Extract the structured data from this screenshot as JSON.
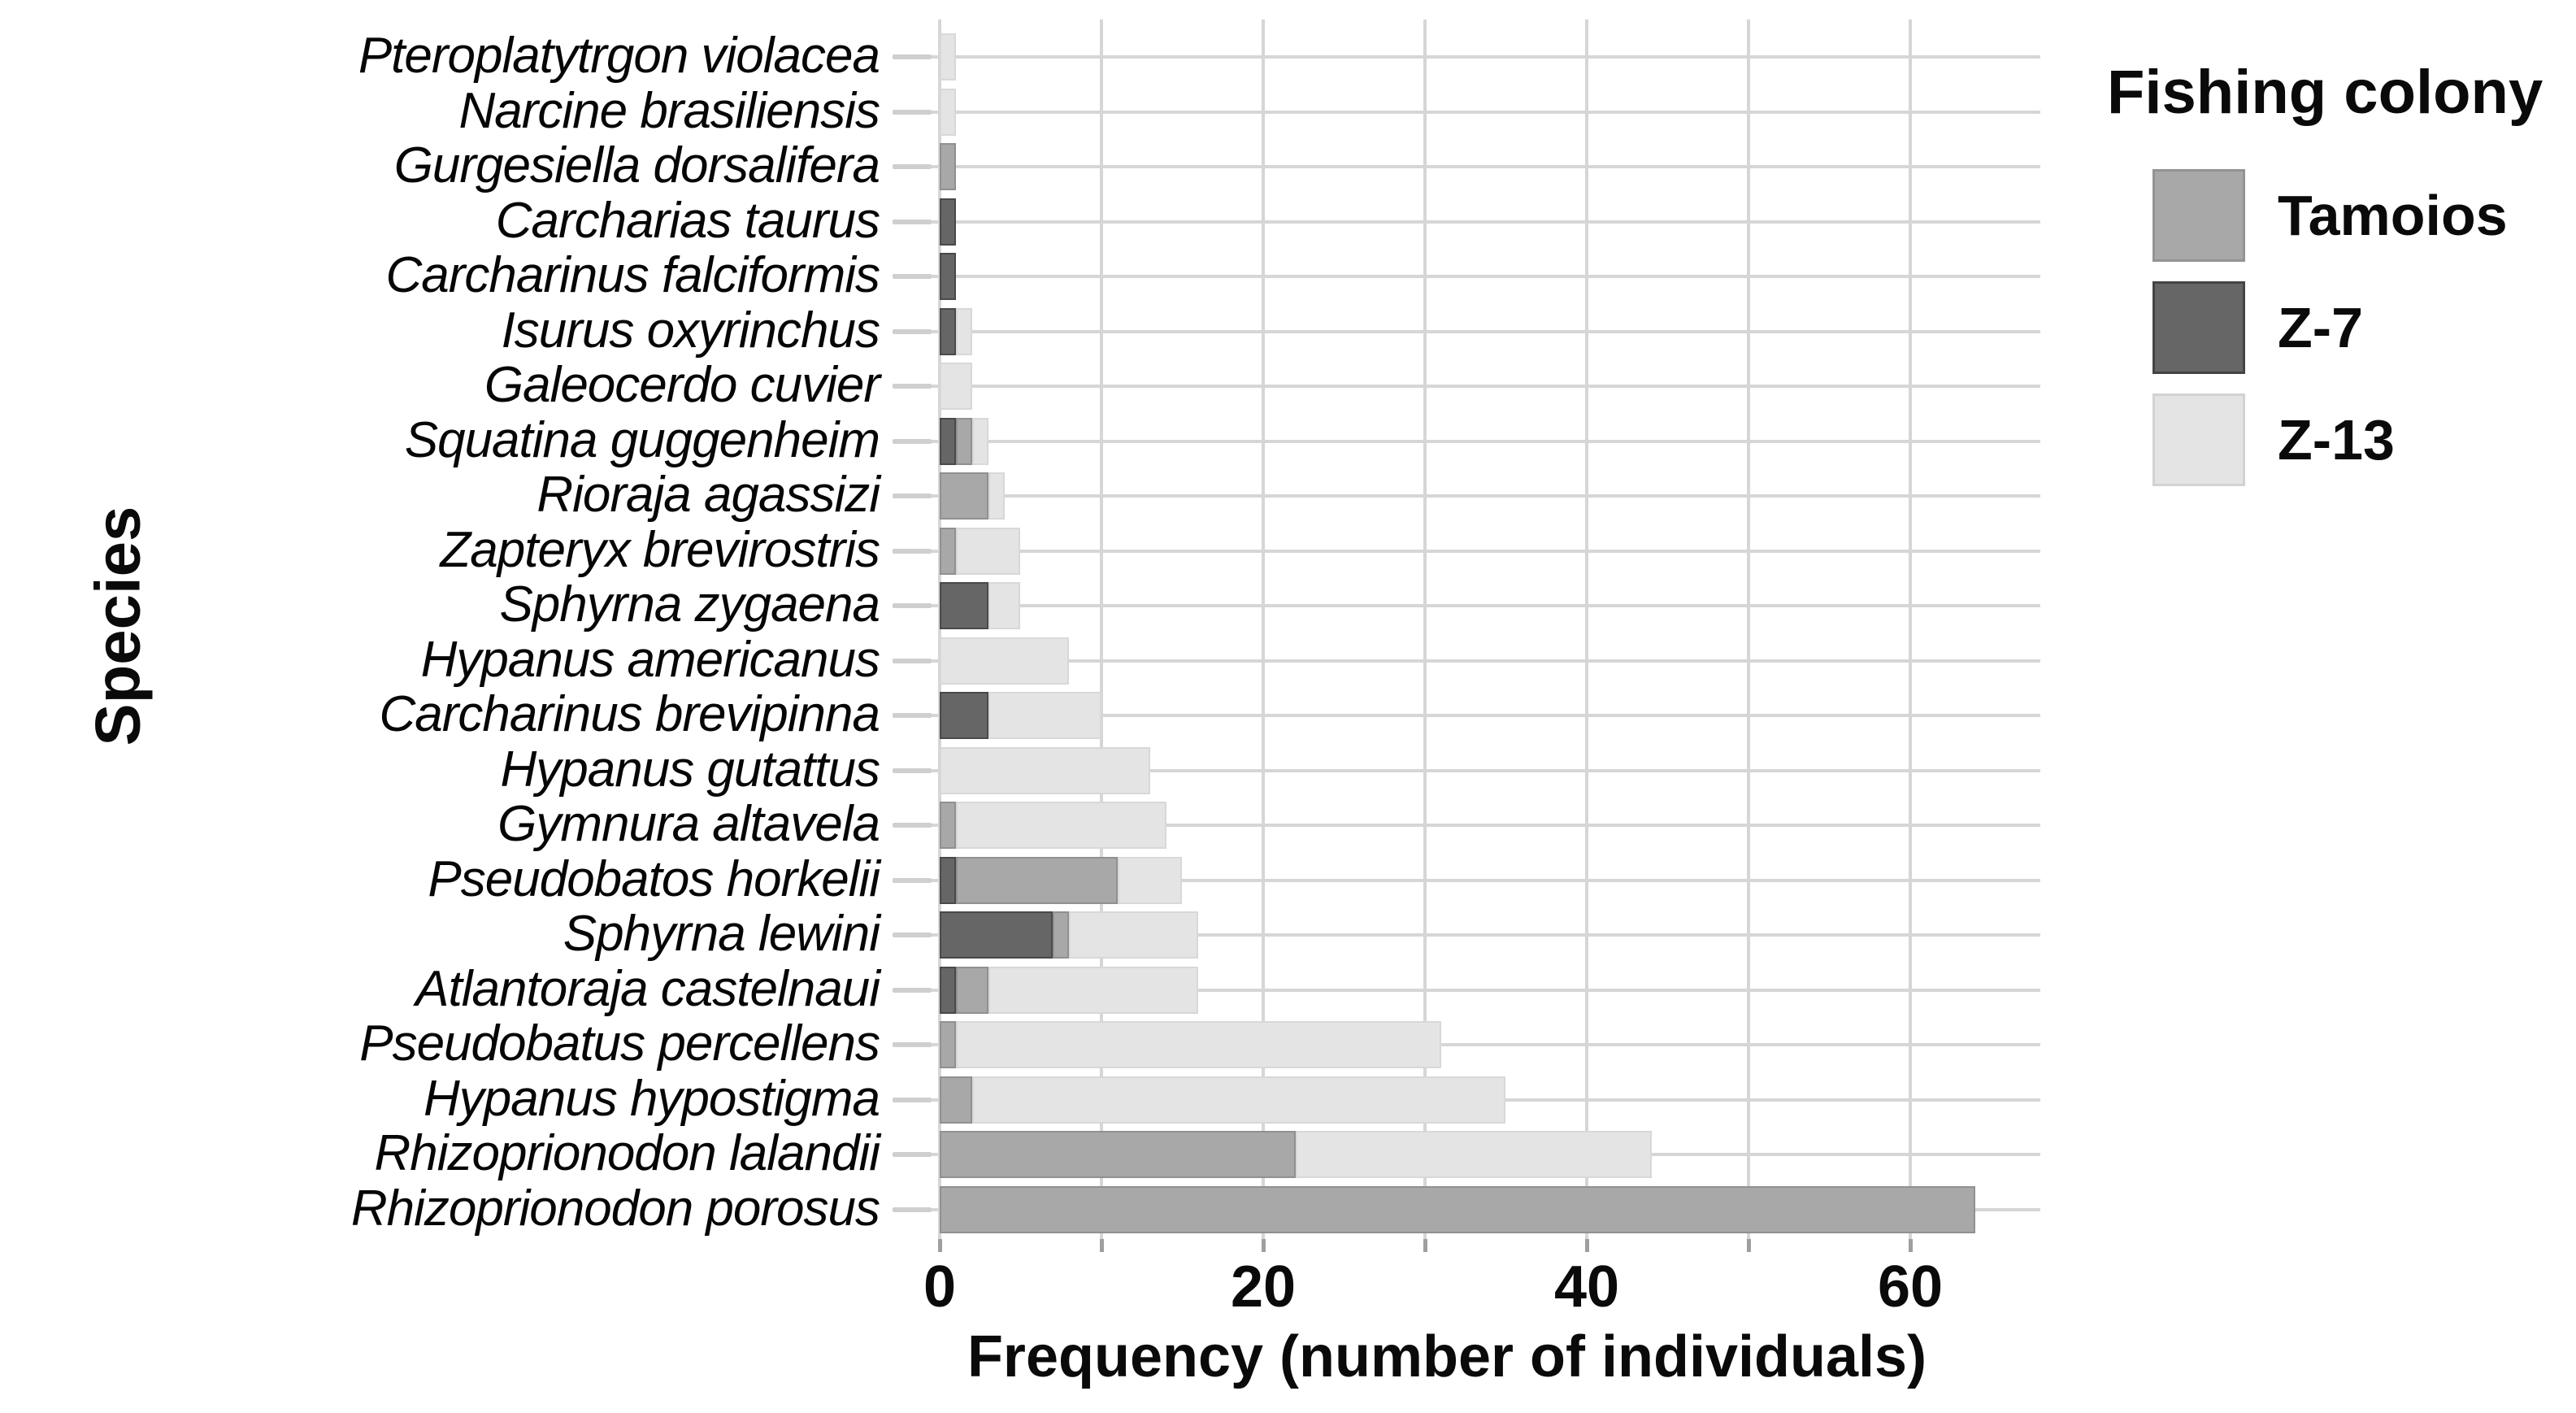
{
  "figure": {
    "background": "#ffffff"
  },
  "axes": {
    "x_title": "Frequency (number of individuals)",
    "y_title": "Species"
  },
  "legend": {
    "title": "Fishing colony",
    "entries": [
      {
        "label": "Tamoios",
        "color": "#a8a8a8",
        "edge": "#939393"
      },
      {
        "label": "Z-7",
        "color": "#666666",
        "edge": "#444444"
      },
      {
        "label": "Z-13",
        "color": "#e4e4e4",
        "edge": "#d2d2d2"
      }
    ]
  },
  "chart_data": {
    "type": "bar",
    "orientation": "horizontal",
    "stacked": true,
    "title": "",
    "xlabel": "Frequency (number of individuals)",
    "ylabel": "Species",
    "xlim": [
      0,
      67
    ],
    "xticks": [
      0,
      10,
      20,
      30,
      40,
      50,
      60
    ],
    "xticks_labeled": [
      0,
      20,
      40,
      60
    ],
    "grid": true,
    "legend_title": "Fishing colony",
    "legend_position": "top-right",
    "stack_order_left_to_right": [
      "Z-7",
      "Tamoios",
      "Z-13"
    ],
    "categories": [
      "Pteroplatytrgon violacea",
      "Narcine brasiliensis",
      "Gurgesiella dorsalifera",
      "Carcharias taurus",
      "Carcharinus falciformis",
      "Isurus oxyrinchus",
      "Galeocerdo cuvier",
      "Squatina guggenheim",
      "Rioraja agassizi",
      "Zapteryx brevirostris",
      "Sphyrna zygaena",
      "Hypanus americanus",
      "Carcharinus brevipinna",
      "Hypanus gutattus",
      "Gymnura altavela",
      "Pseudobatos horkelii",
      "Sphyrna lewini",
      "Atlantoraja castelnaui",
      "Pseudobatus percellens",
      "Hypanus hypostigma",
      "Rhizoprionodon lalandii",
      "Rhizoprionodon porosus"
    ],
    "series": [
      {
        "name": "Tamoios",
        "color": "#a8a8a8",
        "edge": "rgba(0,0,0,0.14)",
        "values": [
          0,
          0,
          1,
          0,
          0,
          0,
          0,
          1,
          3,
          1,
          0,
          0,
          0,
          0,
          1,
          10,
          1,
          2,
          1,
          2,
          22,
          64
        ]
      },
      {
        "name": "Z-7",
        "color": "#666666",
        "edge": "rgba(0,0,0,0.28)",
        "values": [
          0,
          0,
          0,
          1,
          1,
          1,
          0,
          1,
          0,
          0,
          3,
          0,
          3,
          0,
          0,
          1,
          7,
          1,
          0,
          0,
          0,
          0
        ]
      },
      {
        "name": "Z-13",
        "color": "#e4e4e4",
        "edge": "rgba(0,0,0,0.05)",
        "values": [
          1,
          1,
          0,
          0,
          0,
          1,
          2,
          1,
          1,
          4,
          2,
          8,
          7,
          13,
          13,
          4,
          8,
          13,
          30,
          33,
          22,
          0
        ]
      }
    ],
    "totals": [
      1,
      1,
      1,
      1,
      1,
      2,
      2,
      3,
      4,
      5,
      5,
      8,
      10,
      13,
      14,
      15,
      16,
      16,
      31,
      35,
      44,
      64
    ]
  }
}
